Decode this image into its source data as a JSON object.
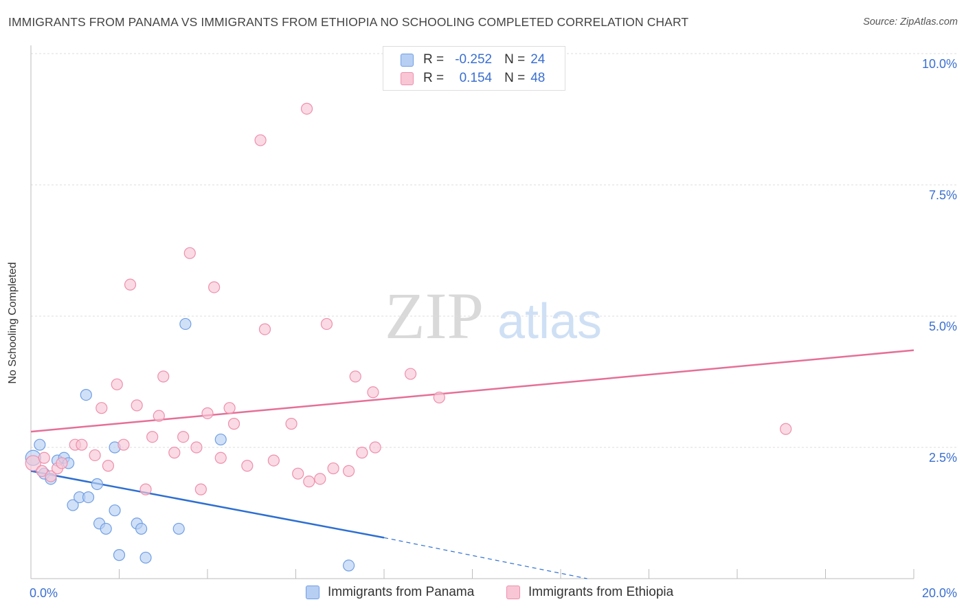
{
  "header": {
    "title": "IMMIGRANTS FROM PANAMA VS IMMIGRANTS FROM ETHIOPIA NO SCHOOLING COMPLETED CORRELATION CHART",
    "source": "Source: ZipAtlas.com"
  },
  "watermark": {
    "zip": "ZIP",
    "atlas": "atlas"
  },
  "legend": {
    "r_label": "R =",
    "n_label": "N =",
    "rows": [
      {
        "r": "-0.252",
        "n": "24"
      },
      {
        "r": "0.154",
        "n": "48"
      }
    ]
  },
  "colors": {
    "panama_fill": "#b7cff3",
    "panama_stroke": "#6f9ee6",
    "panama_line": "#2d6fd1",
    "ethiopia_fill": "#f8c6d5",
    "ethiopia_stroke": "#ee8fac",
    "ethiopia_line": "#e56f98",
    "axis_text": "#3a6fd0",
    "grid": "#dddddd"
  },
  "chart_data": {
    "type": "scatter",
    "title": "IMMIGRANTS FROM PANAMA VS IMMIGRANTS FROM ETHIOPIA NO SCHOOLING COMPLETED CORRELATION CHART",
    "xlabel": "",
    "ylabel": "No Schooling Completed",
    "xlim": [
      0,
      20
    ],
    "ylim": [
      0,
      10
    ],
    "x_tick_labels": [
      "0.0%",
      "20.0%"
    ],
    "y_ticks": [
      2.5,
      5.0,
      7.5,
      10.0
    ],
    "y_tick_labels": [
      "2.5%",
      "5.0%",
      "7.5%",
      "10.0%"
    ],
    "grid": true,
    "series": [
      {
        "name": "Immigrants from Panama",
        "r": -0.252,
        "n": 24,
        "points": [
          [
            0.05,
            2.3
          ],
          [
            0.2,
            2.55
          ],
          [
            0.3,
            2.0
          ],
          [
            0.45,
            1.9
          ],
          [
            0.6,
            2.25
          ],
          [
            0.75,
            2.3
          ],
          [
            0.85,
            2.2
          ],
          [
            0.95,
            1.4
          ],
          [
            1.1,
            1.55
          ],
          [
            1.3,
            1.55
          ],
          [
            1.5,
            1.8
          ],
          [
            1.55,
            1.05
          ],
          [
            1.7,
            0.95
          ],
          [
            1.9,
            1.3
          ],
          [
            2.0,
            0.45
          ],
          [
            2.4,
            1.05
          ],
          [
            2.5,
            0.95
          ],
          [
            2.6,
            0.4
          ],
          [
            3.35,
            0.95
          ],
          [
            3.5,
            4.85
          ],
          [
            4.3,
            2.65
          ],
          [
            7.2,
            0.25
          ],
          [
            1.25,
            3.5
          ],
          [
            1.9,
            2.5
          ]
        ],
        "trend": {
          "x_start": 0,
          "y_start": 2.05,
          "x_solid_end": 8.0,
          "y_solid_end": 0.78,
          "x_end": 12.6,
          "y_end": 0.0
        }
      },
      {
        "name": "Immigrants from Ethiopia",
        "r": 0.154,
        "n": 48,
        "points": [
          [
            0.05,
            2.2
          ],
          [
            0.25,
            2.05
          ],
          [
            0.45,
            1.95
          ],
          [
            0.6,
            2.1
          ],
          [
            0.7,
            2.2
          ],
          [
            1.0,
            2.55
          ],
          [
            1.15,
            2.55
          ],
          [
            1.45,
            2.35
          ],
          [
            1.6,
            3.25
          ],
          [
            1.75,
            2.15
          ],
          [
            1.95,
            3.7
          ],
          [
            2.1,
            2.55
          ],
          [
            2.25,
            5.6
          ],
          [
            2.4,
            3.3
          ],
          [
            2.6,
            1.7
          ],
          [
            2.75,
            2.7
          ],
          [
            2.9,
            3.1
          ],
          [
            3.0,
            3.85
          ],
          [
            3.25,
            2.4
          ],
          [
            3.45,
            2.7
          ],
          [
            3.6,
            6.2
          ],
          [
            3.75,
            2.5
          ],
          [
            3.85,
            1.7
          ],
          [
            4.0,
            3.15
          ],
          [
            4.15,
            5.55
          ],
          [
            4.3,
            2.3
          ],
          [
            4.5,
            3.25
          ],
          [
            4.6,
            2.95
          ],
          [
            4.9,
            2.15
          ],
          [
            5.2,
            8.35
          ],
          [
            5.3,
            4.75
          ],
          [
            5.5,
            2.25
          ],
          [
            5.9,
            2.95
          ],
          [
            6.05,
            2.0
          ],
          [
            6.25,
            8.95
          ],
          [
            6.3,
            1.85
          ],
          [
            6.55,
            1.9
          ],
          [
            6.7,
            4.85
          ],
          [
            6.85,
            2.1
          ],
          [
            7.2,
            2.05
          ],
          [
            7.35,
            3.85
          ],
          [
            7.5,
            2.4
          ],
          [
            7.75,
            3.55
          ],
          [
            7.8,
            2.5
          ],
          [
            8.6,
            3.9
          ],
          [
            9.25,
            3.45
          ],
          [
            17.1,
            2.85
          ],
          [
            0.3,
            2.3
          ]
        ],
        "trend": {
          "x_start": 0,
          "y_start": 2.8,
          "x_end": 20,
          "y_end": 4.35
        }
      }
    ]
  }
}
